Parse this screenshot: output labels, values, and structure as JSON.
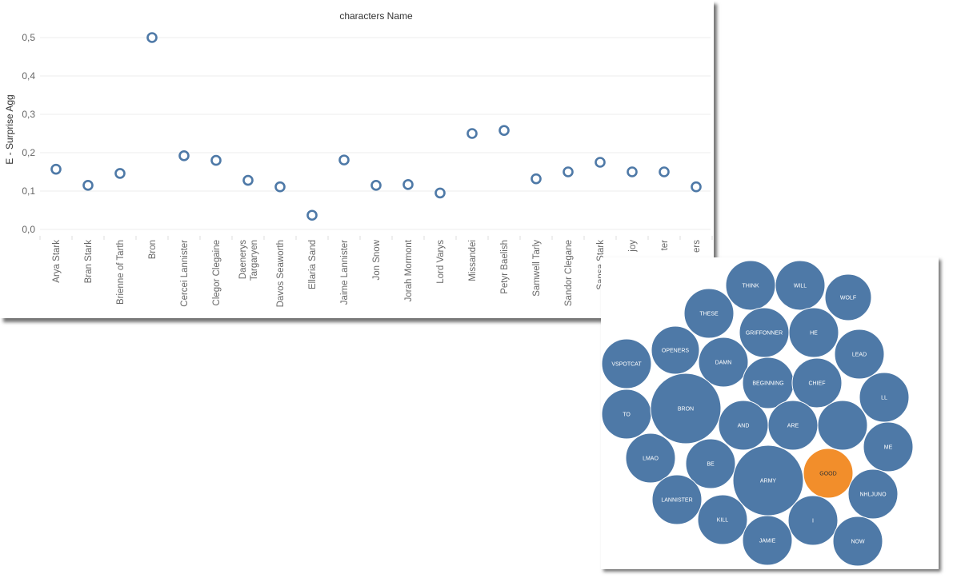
{
  "chart_data": [
    {
      "type": "scatter",
      "title": "characters Name",
      "ylabel": "E - Surprise Agg",
      "ylim": [
        0,
        0.5
      ],
      "yticks": [
        "0,0",
        "0,1",
        "0,2",
        "0,3",
        "0,4",
        "0,5"
      ],
      "grid": true,
      "colors": {
        "marker": "#4e79a7"
      },
      "categories": [
        [
          "Arya Stark"
        ],
        [
          "Bran Stark"
        ],
        [
          "Brienne of Tarth"
        ],
        [
          "Bron"
        ],
        [
          "Cercei Lannister"
        ],
        [
          "Clegor Clegaine"
        ],
        [
          "Daenerys",
          "Targaryen"
        ],
        [
          "Davos Seaworth"
        ],
        [
          "Ellaria Sand"
        ],
        [
          "Jaime Lannister"
        ],
        [
          "Jon Snow"
        ],
        [
          "Jorah Mormont"
        ],
        [
          "Lord Varys"
        ],
        [
          "Missandei"
        ],
        [
          "Petyr Baelish"
        ],
        [
          "Samwell Tarly"
        ],
        [
          "Sandor Clegane"
        ],
        [
          "Sansa Stark"
        ],
        [
          "joy"
        ],
        [
          "ter"
        ],
        [
          "ers"
        ]
      ],
      "values": [
        0.157,
        0.115,
        0.146,
        0.5,
        0.192,
        0.18,
        0.128,
        0.111,
        0.037,
        0.181,
        0.115,
        0.117,
        0.095,
        0.25,
        0.258,
        0.132,
        0.15,
        0.175,
        0.15,
        0.15,
        0.111
      ]
    },
    {
      "type": "bubble",
      "colors": {
        "default": "#4e79a7",
        "highlight": "#f28e2b"
      },
      "bubbles": [
        {
          "label": "THINK",
          "highlight": false
        },
        {
          "label": "WILL",
          "highlight": false
        },
        {
          "label": "WOLF",
          "highlight": false
        },
        {
          "label": "THESE",
          "highlight": false
        },
        {
          "label": "GRIFFONNER",
          "highlight": false
        },
        {
          "label": "HE",
          "highlight": false
        },
        {
          "label": "OPENERS",
          "highlight": false
        },
        {
          "label": "LEAD",
          "highlight": false
        },
        {
          "label": "VSPOTCAT",
          "highlight": false
        },
        {
          "label": "DAMN",
          "highlight": false
        },
        {
          "label": "BEGINNING",
          "highlight": false
        },
        {
          "label": "CHIEF",
          "highlight": false
        },
        {
          "label": "LL",
          "highlight": false
        },
        {
          "label": "TO",
          "highlight": false
        },
        {
          "label": "BRON",
          "highlight": false
        },
        {
          "label": "AND",
          "highlight": false
        },
        {
          "label": "ARE",
          "highlight": false
        },
        {
          "label": "",
          "highlight": false
        },
        {
          "label": "ME",
          "highlight": false
        },
        {
          "label": "LMAO",
          "highlight": false
        },
        {
          "label": "BE",
          "highlight": false
        },
        {
          "label": "ARMY",
          "highlight": false
        },
        {
          "label": "GOOD",
          "highlight": true
        },
        {
          "label": "NHLJUNO",
          "highlight": false
        },
        {
          "label": "LANNISTER",
          "highlight": false
        },
        {
          "label": "KILL",
          "highlight": false
        },
        {
          "label": "I",
          "highlight": false
        },
        {
          "label": "JAMIE",
          "highlight": false
        },
        {
          "label": "NOW",
          "highlight": false
        }
      ]
    }
  ]
}
